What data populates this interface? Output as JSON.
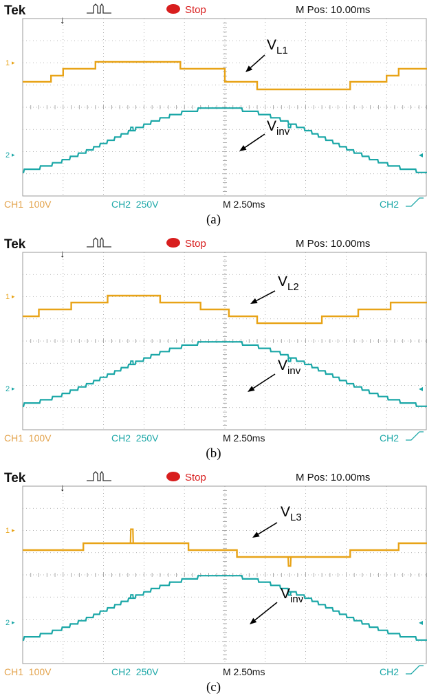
{
  "colors": {
    "ch1": "#E8A317",
    "ch2": "#1BA7A7",
    "grid": "#9a9a9a",
    "bg": "#ffffff",
    "stop_dot": "#d81e1e",
    "footer": "#e3a24a"
  },
  "header": {
    "brand": "Tek",
    "status": "Stop",
    "mpos": "M Pos: 10.00ms"
  },
  "footer": {
    "ch1": "CH1  100V",
    "ch2": "CH2  250V",
    "timebase": "M 2.50ms",
    "trigger": "CH2"
  },
  "markers": {
    "ch1": "1",
    "ch2": "2"
  },
  "chart_data": [
    {
      "type": "line",
      "caption": "(a)",
      "x": [
        0,
        1,
        2,
        3,
        4,
        5,
        6,
        7,
        8,
        9,
        10
      ],
      "xunit": "div (2.50 ms/div)",
      "series": [
        {
          "name": "VL1",
          "label_main": "V",
          "label_sub": "L1",
          "channel": "CH1",
          "points": [
            [
              0,
              0.55
            ],
            [
              0.7,
              0.55
            ],
            [
              0.7,
              1.0
            ],
            [
              1.0,
              1.0
            ],
            [
              1.0,
              1.5
            ],
            [
              1.8,
              1.5
            ],
            [
              1.8,
              2.0
            ],
            [
              3.9,
              2.0
            ],
            [
              3.9,
              1.5
            ],
            [
              5.0,
              1.5
            ],
            [
              5.0,
              0.55
            ],
            [
              5.8,
              0.55
            ],
            [
              5.8,
              0.0
            ],
            [
              8.1,
              0.0
            ],
            [
              8.1,
              0.55
            ],
            [
              9.0,
              0.55
            ],
            [
              9.0,
              1.0
            ],
            [
              9.3,
              1.0
            ],
            [
              9.3,
              1.5
            ],
            [
              10,
              1.5
            ]
          ]
        },
        {
          "name": "Vinv",
          "label_main": "V",
          "label_sub": "inv",
          "channel": "CH2",
          "waveform": "staircase-sine",
          "phase_deg": 0,
          "peak_div": 1.45,
          "steps_per_quarter": 10,
          "spikes": [
            [
              2.7,
              0.3
            ],
            [
              6.6,
              -0.3
            ]
          ]
        }
      ]
    },
    {
      "type": "line",
      "caption": "(b)",
      "x": [
        0,
        1,
        2,
        3,
        4,
        5,
        6,
        7,
        8,
        9,
        10
      ],
      "xunit": "div (2.50 ms/div)",
      "series": [
        {
          "name": "VL2",
          "label_main": "V",
          "label_sub": "L2",
          "channel": "CH1",
          "points": [
            [
              0,
              0.5
            ],
            [
              0.4,
              0.5
            ],
            [
              0.4,
              1.0
            ],
            [
              1.2,
              1.0
            ],
            [
              1.2,
              1.5
            ],
            [
              2.1,
              1.5
            ],
            [
              2.1,
              2.0
            ],
            [
              3.4,
              2.0
            ],
            [
              3.4,
              1.5
            ],
            [
              4.4,
              1.5
            ],
            [
              4.4,
              1.0
            ],
            [
              5.1,
              1.0
            ],
            [
              5.1,
              0.5
            ],
            [
              5.8,
              0.5
            ],
            [
              5.8,
              0.0
            ],
            [
              7.4,
              0.0
            ],
            [
              7.4,
              0.5
            ],
            [
              8.3,
              0.5
            ],
            [
              8.3,
              1.0
            ],
            [
              9.1,
              1.0
            ],
            [
              9.1,
              1.5
            ],
            [
              10,
              1.5
            ]
          ]
        },
        {
          "name": "Vinv",
          "label_main": "V",
          "label_sub": "inv",
          "channel": "CH2",
          "waveform": "staircase-sine",
          "phase_deg": 0,
          "peak_div": 1.45,
          "steps_per_quarter": 10,
          "spikes": [
            [
              2.7,
              0.3
            ],
            [
              6.6,
              -0.3
            ]
          ]
        }
      ]
    },
    {
      "type": "line",
      "caption": "(c)",
      "x": [
        0,
        1,
        2,
        3,
        4,
        5,
        6,
        7,
        8,
        9,
        10
      ],
      "xunit": "div (2.50 ms/div)",
      "series": [
        {
          "name": "VL3",
          "label_main": "V",
          "label_sub": "L3",
          "channel": "CH1",
          "points": [
            [
              0,
              0.5
            ],
            [
              1.5,
              0.5
            ],
            [
              1.5,
              1.0
            ],
            [
              4.1,
              1.0
            ],
            [
              4.1,
              0.5
            ],
            [
              5.3,
              0.5
            ],
            [
              5.3,
              0.0
            ],
            [
              8.1,
              0.0
            ],
            [
              8.1,
              0.5
            ],
            [
              9.3,
              0.5
            ],
            [
              9.3,
              1.0
            ],
            [
              10,
              1.0
            ]
          ],
          "spikes": [
            [
              2.7,
              0.85
            ],
            [
              6.6,
              -0.55
            ]
          ]
        },
        {
          "name": "Vinv",
          "label_main": "V",
          "label_sub": "inv",
          "channel": "CH2",
          "waveform": "staircase-sine",
          "phase_deg": 0,
          "peak_div": 1.45,
          "steps_per_quarter": 10,
          "spikes": [
            [
              2.7,
              0.3
            ],
            [
              6.6,
              -0.3
            ]
          ]
        }
      ]
    }
  ]
}
